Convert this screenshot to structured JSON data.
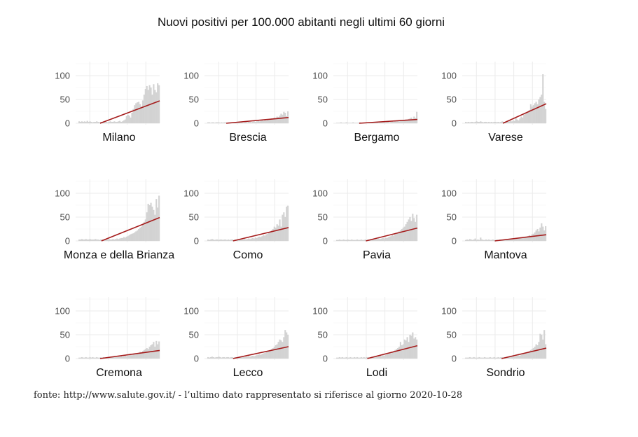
{
  "chart_data": {
    "type": "bar",
    "title": "Nuovi positivi per 100.000 abitanti negli ultimi 60 giorni",
    "caption": "fonte: http://www.salute.gov.it/ - l’ultimo dato rappresentato si riferisce al giorno 2020-10-28",
    "xlabel": "",
    "ylabel": "",
    "ylim": [
      0,
      130
    ],
    "yticks": [
      "0",
      "50",
      "100"
    ],
    "grid": true,
    "bar_color": "#d3d3d3",
    "trend_color": "#a51c1c",
    "panels": [
      {
        "name": "Milano",
        "values": [
          4,
          3,
          4,
          3,
          4,
          3,
          5,
          3,
          4,
          3,
          2,
          3,
          3,
          4,
          3,
          2,
          3,
          3,
          4,
          3,
          3,
          2,
          3,
          4,
          3,
          3,
          4,
          3,
          3,
          4,
          5,
          3,
          4,
          6,
          8,
          15,
          18,
          16,
          12,
          22,
          30,
          38,
          42,
          44,
          45,
          40,
          35,
          48,
          60,
          72,
          78,
          70,
          80,
          75,
          60,
          82,
          70,
          65,
          84,
          80
        ],
        "trend": {
          "x0": 16,
          "y0": 0,
          "x1": 60,
          "y1": 47
        }
      },
      {
        "name": "Brescia",
        "values": [
          2,
          2,
          1,
          2,
          2,
          1,
          2,
          2,
          2,
          1,
          2,
          1,
          2,
          2,
          1,
          2,
          2,
          1,
          2,
          2,
          2,
          1,
          2,
          2,
          2,
          2,
          1,
          2,
          3,
          2,
          3,
          3,
          2,
          3,
          4,
          3,
          4,
          5,
          4,
          5,
          6,
          5,
          7,
          6,
          8,
          7,
          9,
          10,
          8,
          12,
          11,
          14,
          13,
          16,
          20,
          18,
          24,
          22,
          15,
          25
        ],
        "trend": {
          "x0": 14,
          "y0": 0,
          "x1": 60,
          "y1": 12
        }
      },
      {
        "name": "Bergamo",
        "values": [
          1,
          1,
          1,
          2,
          1,
          1,
          1,
          2,
          1,
          1,
          1,
          1,
          2,
          1,
          1,
          1,
          1,
          2,
          1,
          1,
          1,
          1,
          1,
          2,
          1,
          1,
          1,
          2,
          1,
          2,
          2,
          1,
          2,
          2,
          2,
          3,
          2,
          3,
          3,
          2,
          3,
          4,
          3,
          4,
          4,
          5,
          4,
          6,
          5,
          6,
          7,
          8,
          7,
          9,
          10,
          12,
          9,
          14,
          11,
          24
        ],
        "trend": {
          "x0": 17,
          "y0": 0,
          "x1": 60,
          "y1": 8
        }
      },
      {
        "name": "Varese",
        "values": [
          3,
          2,
          3,
          2,
          3,
          3,
          2,
          3,
          4,
          3,
          3,
          4,
          3,
          2,
          3,
          3,
          2,
          3,
          2,
          3,
          2,
          3,
          3,
          2,
          3,
          2,
          3,
          4,
          3,
          3,
          4,
          3,
          4,
          5,
          4,
          6,
          5,
          12,
          8,
          6,
          10,
          14,
          12,
          18,
          20,
          22,
          24,
          28,
          40,
          35,
          38,
          42,
          45,
          40,
          50,
          55,
          60,
          103,
          45,
          30
        ],
        "trend": {
          "x0": 28,
          "y0": 0,
          "x1": 60,
          "y1": 41
        }
      },
      {
        "name": "Monza e della Brianza",
        "values": [
          3,
          3,
          4,
          3,
          3,
          4,
          3,
          3,
          4,
          3,
          3,
          3,
          4,
          3,
          3,
          2,
          3,
          3,
          3,
          2,
          3,
          3,
          4,
          3,
          3,
          4,
          3,
          4,
          5,
          4,
          5,
          6,
          6,
          8,
          7,
          9,
          10,
          12,
          14,
          15,
          16,
          18,
          20,
          22,
          25,
          28,
          30,
          35,
          40,
          45,
          60,
          78,
          75,
          80,
          72,
          65,
          55,
          88,
          70,
          95
        ],
        "trend": {
          "x0": 17,
          "y0": 0,
          "x1": 60,
          "y1": 49
        }
      },
      {
        "name": "Como",
        "values": [
          3,
          2,
          3,
          4,
          3,
          2,
          3,
          3,
          2,
          3,
          3,
          2,
          3,
          3,
          2,
          3,
          2,
          3,
          3,
          2,
          3,
          2,
          3,
          3,
          4,
          3,
          3,
          4,
          3,
          4,
          5,
          4,
          5,
          6,
          5,
          7,
          6,
          8,
          9,
          8,
          10,
          12,
          11,
          14,
          15,
          18,
          20,
          22,
          25,
          30,
          28,
          35,
          32,
          45,
          30,
          55,
          60,
          50,
          72,
          74
        ],
        "trend": {
          "x0": 19,
          "y0": 0,
          "x1": 60,
          "y1": 28
        }
      },
      {
        "name": "Pavia",
        "values": [
          2,
          2,
          3,
          2,
          2,
          3,
          2,
          2,
          3,
          2,
          2,
          3,
          2,
          2,
          2,
          3,
          2,
          2,
          3,
          2,
          2,
          3,
          2,
          3,
          3,
          2,
          3,
          4,
          3,
          4,
          4,
          5,
          4,
          5,
          6,
          5,
          7,
          6,
          8,
          9,
          10,
          12,
          11,
          14,
          15,
          18,
          20,
          22,
          25,
          28,
          30,
          35,
          40,
          45,
          50,
          42,
          57,
          48,
          40,
          55
        ],
        "trend": {
          "x0": 22,
          "y0": 0,
          "x1": 60,
          "y1": 27
        }
      },
      {
        "name": "Mantova",
        "values": [
          2,
          3,
          2,
          4,
          3,
          2,
          3,
          5,
          2,
          3,
          2,
          7,
          3,
          2,
          2,
          3,
          2,
          3,
          2,
          2,
          3,
          2,
          2,
          3,
          2,
          3,
          3,
          2,
          3,
          3,
          4,
          3,
          4,
          4,
          5,
          4,
          5,
          6,
          5,
          6,
          7,
          6,
          8,
          7,
          9,
          8,
          10,
          12,
          11,
          14,
          15,
          18,
          22,
          25,
          20,
          28,
          37,
          30,
          22,
          31
        ],
        "trend": {
          "x0": 22,
          "y0": 0,
          "x1": 60,
          "y1": 13
        }
      },
      {
        "name": "Cremona",
        "values": [
          2,
          2,
          3,
          2,
          2,
          3,
          2,
          2,
          3,
          2,
          3,
          2,
          2,
          3,
          2,
          2,
          3,
          2,
          3,
          2,
          2,
          3,
          3,
          2,
          3,
          3,
          4,
          3,
          3,
          4,
          4,
          5,
          4,
          5,
          6,
          5,
          6,
          7,
          8,
          7,
          9,
          10,
          9,
          11,
          12,
          14,
          13,
          16,
          18,
          20,
          22,
          20,
          25,
          28,
          30,
          35,
          25,
          37,
          30,
          36
        ],
        "trend": {
          "x0": 16,
          "y0": 0,
          "x1": 60,
          "y1": 17
        }
      },
      {
        "name": "Lecco",
        "values": [
          3,
          2,
          3,
          4,
          3,
          2,
          3,
          3,
          4,
          3,
          2,
          3,
          3,
          2,
          3,
          3,
          2,
          3,
          3,
          2,
          3,
          3,
          2,
          3,
          3,
          4,
          3,
          3,
          4,
          4,
          5,
          4,
          5,
          6,
          5,
          6,
          7,
          8,
          9,
          8,
          10,
          11,
          12,
          14,
          15,
          16,
          18,
          20,
          22,
          25,
          28,
          30,
          35,
          40,
          38,
          35,
          45,
          60,
          55,
          50
        ],
        "trend": {
          "x0": 19,
          "y0": 0,
          "x1": 60,
          "y1": 25
        }
      },
      {
        "name": "Lodi",
        "values": [
          2,
          2,
          3,
          2,
          3,
          2,
          2,
          3,
          2,
          2,
          3,
          2,
          2,
          3,
          2,
          3,
          2,
          2,
          3,
          2,
          3,
          2,
          3,
          3,
          2,
          3,
          4,
          3,
          4,
          5,
          4,
          5,
          6,
          5,
          7,
          6,
          8,
          9,
          10,
          12,
          11,
          14,
          16,
          18,
          20,
          22,
          25,
          35,
          28,
          30,
          40,
          38,
          45,
          35,
          50,
          48,
          55,
          42,
          45,
          40
        ],
        "trend": {
          "x0": 23,
          "y0": 0,
          "x1": 60,
          "y1": 27
        }
      },
      {
        "name": "Sondrio",
        "values": [
          2,
          2,
          2,
          3,
          2,
          2,
          3,
          2,
          2,
          2,
          3,
          2,
          2,
          2,
          3,
          2,
          2,
          2,
          3,
          2,
          2,
          3,
          2,
          2,
          3,
          2,
          3,
          3,
          2,
          3,
          3,
          4,
          3,
          4,
          4,
          5,
          4,
          5,
          6,
          7,
          6,
          8,
          9,
          10,
          12,
          11,
          14,
          16,
          18,
          20,
          22,
          25,
          30,
          28,
          35,
          52,
          50,
          40,
          60,
          30
        ],
        "trend": {
          "x0": 27,
          "y0": 0,
          "x1": 60,
          "y1": 22
        }
      }
    ]
  }
}
